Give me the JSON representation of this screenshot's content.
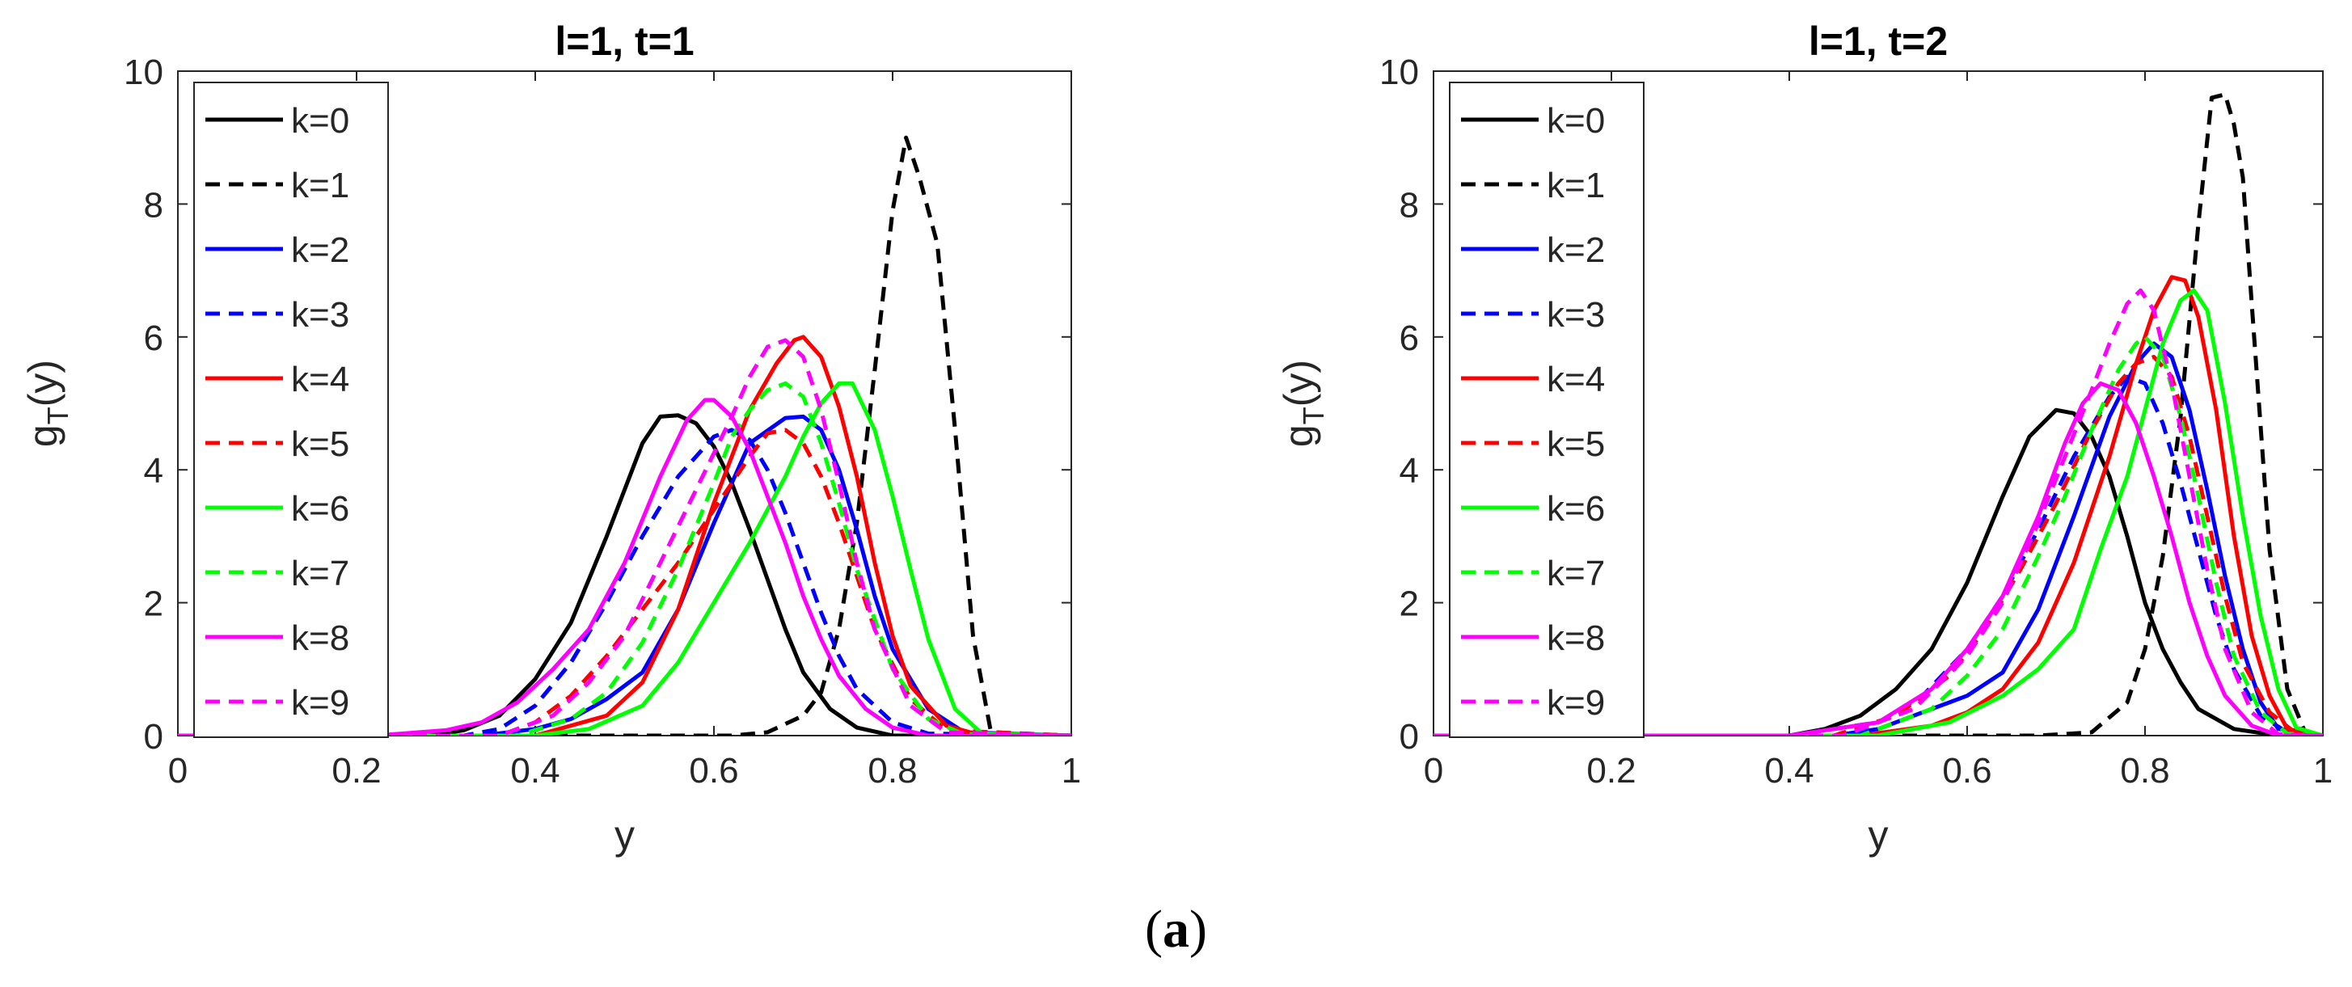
{
  "caption": {
    "open": "(",
    "label": "a",
    "close": ")"
  },
  "chart_data": [
    {
      "type": "line",
      "title": "l=1, t=1",
      "xlabel": "y",
      "ylabel_main": "g",
      "ylabel_sub": "T",
      "ylabel_tail": "(y)",
      "xlim": [
        0,
        1
      ],
      "ylim": [
        0,
        10
      ],
      "xticks": [
        0,
        0.2,
        0.4,
        0.6,
        0.8,
        1
      ],
      "xtick_labels": [
        "0",
        "0.2",
        "0.4",
        "0.6",
        "0.8",
        "1"
      ],
      "yticks": [
        0,
        2,
        4,
        6,
        8,
        10
      ],
      "ytick_labels": [
        "0",
        "2",
        "4",
        "6",
        "8",
        "10"
      ],
      "legend_position": "top-left",
      "series": [
        {
          "name": "k=0",
          "color": "#000000",
          "style": "solid",
          "x": [
            0,
            0.28,
            0.32,
            0.36,
            0.4,
            0.44,
            0.48,
            0.52,
            0.54,
            0.56,
            0.58,
            0.6,
            0.62,
            0.64,
            0.66,
            0.68,
            0.7,
            0.73,
            0.76,
            0.8,
            1.0
          ],
          "y": [
            0,
            0,
            0.08,
            0.3,
            0.85,
            1.7,
            3.0,
            4.4,
            4.8,
            4.82,
            4.7,
            4.35,
            3.8,
            3.1,
            2.35,
            1.6,
            0.95,
            0.4,
            0.12,
            0,
            0
          ]
        },
        {
          "name": "k=1",
          "color": "#000000",
          "style": "dashed",
          "x": [
            0,
            0.55,
            0.62,
            0.66,
            0.7,
            0.72,
            0.74,
            0.76,
            0.78,
            0.8,
            0.815,
            0.83,
            0.85,
            0.87,
            0.89,
            0.91,
            1.0
          ],
          "y": [
            0,
            0,
            0,
            0.05,
            0.3,
            0.65,
            1.6,
            3.2,
            5.5,
            7.9,
            9.0,
            8.4,
            7.4,
            4.6,
            1.5,
            0.05,
            0
          ]
        },
        {
          "name": "k=2",
          "color": "#0000ff",
          "style": "solid",
          "x": [
            0,
            0.34,
            0.4,
            0.44,
            0.48,
            0.52,
            0.56,
            0.6,
            0.64,
            0.68,
            0.7,
            0.72,
            0.74,
            0.76,
            0.78,
            0.8,
            0.84,
            0.88,
            1.0
          ],
          "y": [
            0,
            0,
            0.1,
            0.25,
            0.55,
            0.95,
            1.9,
            3.2,
            4.4,
            4.78,
            4.8,
            4.6,
            4.0,
            3.1,
            2.1,
            1.3,
            0.4,
            0.05,
            0
          ]
        },
        {
          "name": "k=3",
          "color": "#0000ff",
          "style": "dashed",
          "x": [
            0,
            0.32,
            0.36,
            0.4,
            0.44,
            0.48,
            0.52,
            0.56,
            0.6,
            0.62,
            0.64,
            0.66,
            0.68,
            0.7,
            0.72,
            0.74,
            0.76,
            0.8,
            0.84,
            1.0
          ],
          "y": [
            0,
            0,
            0.1,
            0.45,
            1.1,
            2.0,
            3.0,
            3.9,
            4.5,
            4.6,
            4.45,
            4.0,
            3.35,
            2.6,
            1.85,
            1.2,
            0.7,
            0.2,
            0.03,
            0
          ]
        },
        {
          "name": "k=4",
          "color": "#ff0000",
          "style": "solid",
          "x": [
            0,
            0.4,
            0.48,
            0.52,
            0.56,
            0.6,
            0.64,
            0.67,
            0.69,
            0.7,
            0.72,
            0.74,
            0.76,
            0.78,
            0.8,
            0.82,
            0.86,
            0.9,
            1.0
          ],
          "y": [
            0,
            0,
            0.3,
            0.8,
            1.9,
            3.5,
            4.9,
            5.6,
            5.95,
            6.0,
            5.7,
            4.95,
            3.9,
            2.6,
            1.5,
            0.75,
            0.15,
            0,
            0
          ]
        },
        {
          "name": "k=5",
          "color": "#ff0000",
          "style": "dashed",
          "x": [
            0,
            0.36,
            0.4,
            0.44,
            0.48,
            0.52,
            0.56,
            0.6,
            0.64,
            0.66,
            0.68,
            0.7,
            0.72,
            0.74,
            0.76,
            0.78,
            0.82,
            0.86,
            1.0
          ],
          "y": [
            0,
            0,
            0.2,
            0.6,
            1.2,
            1.9,
            2.6,
            3.4,
            4.2,
            4.55,
            4.6,
            4.4,
            3.9,
            3.2,
            2.4,
            1.6,
            0.55,
            0.08,
            0
          ]
        },
        {
          "name": "k=6",
          "color": "#00ff00",
          "style": "solid",
          "x": [
            0,
            0.4,
            0.46,
            0.52,
            0.56,
            0.6,
            0.64,
            0.68,
            0.7,
            0.72,
            0.74,
            0.755,
            0.78,
            0.8,
            0.82,
            0.84,
            0.87,
            0.9,
            1.0
          ],
          "y": [
            0,
            0,
            0.1,
            0.45,
            1.1,
            2.0,
            2.9,
            3.9,
            4.5,
            5.0,
            5.3,
            5.3,
            4.6,
            3.6,
            2.5,
            1.45,
            0.4,
            0.03,
            0
          ]
        },
        {
          "name": "k=7",
          "color": "#00ff00",
          "style": "dashed",
          "x": [
            0,
            0.38,
            0.44,
            0.48,
            0.52,
            0.56,
            0.6,
            0.62,
            0.64,
            0.66,
            0.68,
            0.7,
            0.72,
            0.74,
            0.76,
            0.8,
            0.84,
            0.88,
            1.0
          ],
          "y": [
            0,
            0,
            0.25,
            0.65,
            1.4,
            2.5,
            3.8,
            4.5,
            4.9,
            5.2,
            5.3,
            5.1,
            4.4,
            3.5,
            2.5,
            1.0,
            0.25,
            0.02,
            0
          ]
        },
        {
          "name": "k=8",
          "color": "#ff00ff",
          "style": "solid",
          "x": [
            0,
            0.22,
            0.3,
            0.34,
            0.38,
            0.42,
            0.46,
            0.5,
            0.54,
            0.57,
            0.59,
            0.6,
            0.62,
            0.64,
            0.66,
            0.68,
            0.7,
            0.72,
            0.74,
            0.77,
            0.8,
            0.84,
            1.0
          ],
          "y": [
            0,
            0,
            0.08,
            0.2,
            0.5,
            1.0,
            1.6,
            2.6,
            3.9,
            4.75,
            5.05,
            5.05,
            4.8,
            4.3,
            3.6,
            2.9,
            2.1,
            1.45,
            0.9,
            0.4,
            0.12,
            0,
            0
          ]
        },
        {
          "name": "k=9",
          "color": "#ff00ff",
          "style": "dashed",
          "x": [
            0,
            0.36,
            0.42,
            0.46,
            0.5,
            0.54,
            0.58,
            0.62,
            0.64,
            0.66,
            0.68,
            0.7,
            0.72,
            0.74,
            0.76,
            0.78,
            0.82,
            0.86,
            1.0
          ],
          "y": [
            0,
            0,
            0.3,
            0.8,
            1.5,
            2.6,
            3.7,
            4.8,
            5.4,
            5.85,
            5.95,
            5.7,
            4.9,
            3.8,
            2.6,
            1.6,
            0.45,
            0.05,
            0
          ]
        }
      ]
    },
    {
      "type": "line",
      "title": "l=1, t=2",
      "xlabel": "y",
      "ylabel_main": "g",
      "ylabel_sub": "T",
      "ylabel_tail": "(y)",
      "xlim": [
        0,
        1
      ],
      "ylim": [
        0,
        10
      ],
      "xticks": [
        0,
        0.2,
        0.4,
        0.6,
        0.8,
        1
      ],
      "xtick_labels": [
        "0",
        "0.2",
        "0.4",
        "0.6",
        "0.8",
        "1"
      ],
      "yticks": [
        0,
        2,
        4,
        6,
        8,
        10
      ],
      "ytick_labels": [
        "0",
        "2",
        "4",
        "6",
        "8",
        "10"
      ],
      "legend_position": "top-left",
      "series": [
        {
          "name": "k=0",
          "color": "#000000",
          "style": "solid",
          "x": [
            0,
            0.4,
            0.44,
            0.48,
            0.5,
            0.52,
            0.56,
            0.6,
            0.64,
            0.67,
            0.7,
            0.72,
            0.74,
            0.76,
            0.78,
            0.8,
            0.82,
            0.84,
            0.86,
            0.9,
            0.95,
            1.0
          ],
          "y": [
            0,
            0,
            0.1,
            0.3,
            0.5,
            0.7,
            1.3,
            2.3,
            3.6,
            4.5,
            4.9,
            4.85,
            4.5,
            3.9,
            3.0,
            2.0,
            1.3,
            0.8,
            0.4,
            0.1,
            0,
            0
          ]
        },
        {
          "name": "k=1",
          "color": "#000000",
          "style": "dashed",
          "x": [
            0,
            0.68,
            0.74,
            0.78,
            0.8,
            0.82,
            0.84,
            0.86,
            0.875,
            0.89,
            0.9,
            0.91,
            0.92,
            0.94,
            0.96,
            0.98,
            1.0
          ],
          "y": [
            0,
            0,
            0.05,
            0.5,
            1.3,
            2.7,
            4.8,
            7.7,
            9.6,
            9.65,
            9.2,
            8.4,
            6.5,
            2.8,
            0.7,
            0.05,
            0
          ]
        },
        {
          "name": "k=2",
          "color": "#0000ff",
          "style": "solid",
          "x": [
            0,
            0.45,
            0.5,
            0.55,
            0.6,
            0.64,
            0.68,
            0.72,
            0.76,
            0.79,
            0.81,
            0.83,
            0.85,
            0.87,
            0.89,
            0.91,
            0.93,
            0.95,
            1.0
          ],
          "y": [
            0,
            0,
            0.1,
            0.35,
            0.6,
            0.95,
            1.9,
            3.3,
            4.8,
            5.6,
            5.9,
            5.7,
            4.9,
            3.7,
            2.4,
            1.3,
            0.5,
            0.1,
            0
          ]
        },
        {
          "name": "k=3",
          "color": "#0000ff",
          "style": "dashed",
          "x": [
            0,
            0.4,
            0.5,
            0.55,
            0.6,
            0.64,
            0.68,
            0.72,
            0.76,
            0.78,
            0.8,
            0.82,
            0.84,
            0.86,
            0.88,
            0.9,
            0.93,
            0.96,
            1.0
          ],
          "y": [
            0,
            0,
            0.2,
            0.6,
            1.3,
            2.1,
            3.1,
            4.2,
            5.1,
            5.4,
            5.3,
            4.7,
            3.8,
            2.8,
            1.8,
            1.0,
            0.3,
            0.05,
            0
          ]
        },
        {
          "name": "k=4",
          "color": "#ff0000",
          "style": "solid",
          "x": [
            0,
            0.48,
            0.56,
            0.6,
            0.64,
            0.68,
            0.72,
            0.76,
            0.79,
            0.81,
            0.83,
            0.845,
            0.86,
            0.88,
            0.9,
            0.92,
            0.94,
            0.96,
            1.0
          ],
          "y": [
            0,
            0,
            0.15,
            0.35,
            0.7,
            1.4,
            2.6,
            4.2,
            5.6,
            6.4,
            6.9,
            6.85,
            6.3,
            4.9,
            3.0,
            1.5,
            0.6,
            0.1,
            0
          ]
        },
        {
          "name": "k=5",
          "color": "#ff0000",
          "style": "dashed",
          "x": [
            0,
            0.45,
            0.52,
            0.58,
            0.62,
            0.66,
            0.7,
            0.74,
            0.77,
            0.79,
            0.81,
            0.83,
            0.85,
            0.87,
            0.89,
            0.91,
            0.94,
            0.97,
            1.0
          ],
          "y": [
            0,
            0,
            0.3,
            0.9,
            1.6,
            2.5,
            3.5,
            4.6,
            5.3,
            5.6,
            5.7,
            5.4,
            4.5,
            3.3,
            2.1,
            1.1,
            0.35,
            0.03,
            0
          ]
        },
        {
          "name": "k=6",
          "color": "#00ff00",
          "style": "solid",
          "x": [
            0,
            0.5,
            0.58,
            0.64,
            0.68,
            0.72,
            0.75,
            0.78,
            0.8,
            0.82,
            0.84,
            0.855,
            0.87,
            0.89,
            0.91,
            0.93,
            0.95,
            0.97,
            1.0
          ],
          "y": [
            0,
            0,
            0.2,
            0.6,
            1.0,
            1.6,
            2.8,
            3.9,
            4.9,
            5.9,
            6.55,
            6.7,
            6.4,
            5.0,
            3.3,
            1.8,
            0.7,
            0.12,
            0
          ]
        },
        {
          "name": "k=7",
          "color": "#00ff00",
          "style": "dashed",
          "x": [
            0,
            0.48,
            0.56,
            0.6,
            0.64,
            0.68,
            0.71,
            0.74,
            0.77,
            0.79,
            0.8,
            0.82,
            0.84,
            0.86,
            0.88,
            0.9,
            0.93,
            0.96,
            1.0
          ],
          "y": [
            0,
            0,
            0.4,
            0.9,
            1.6,
            2.7,
            3.6,
            4.6,
            5.5,
            5.9,
            6.0,
            5.7,
            4.8,
            3.6,
            2.3,
            1.2,
            0.35,
            0.03,
            0
          ]
        },
        {
          "name": "k=8",
          "color": "#ff00ff",
          "style": "solid",
          "x": [
            0,
            0.4,
            0.5,
            0.56,
            0.6,
            0.64,
            0.68,
            0.71,
            0.73,
            0.75,
            0.77,
            0.79,
            0.81,
            0.83,
            0.85,
            0.87,
            0.89,
            0.92,
            0.95,
            1.0
          ],
          "y": [
            0,
            0,
            0.2,
            0.7,
            1.3,
            2.1,
            3.3,
            4.4,
            5.0,
            5.3,
            5.2,
            4.7,
            3.9,
            3.0,
            2.0,
            1.2,
            0.6,
            0.15,
            0,
            0
          ]
        },
        {
          "name": "k=9",
          "color": "#ff00ff",
          "style": "dashed",
          "x": [
            0,
            0.46,
            0.54,
            0.6,
            0.64,
            0.68,
            0.71,
            0.74,
            0.76,
            0.78,
            0.795,
            0.81,
            0.83,
            0.85,
            0.87,
            0.89,
            0.92,
            0.95,
            1.0
          ],
          "y": [
            0,
            0,
            0.4,
            1.2,
            2.0,
            3.2,
            4.2,
            5.2,
            5.9,
            6.5,
            6.7,
            6.4,
            5.3,
            3.9,
            2.5,
            1.3,
            0.35,
            0.02,
            0
          ]
        }
      ]
    }
  ]
}
